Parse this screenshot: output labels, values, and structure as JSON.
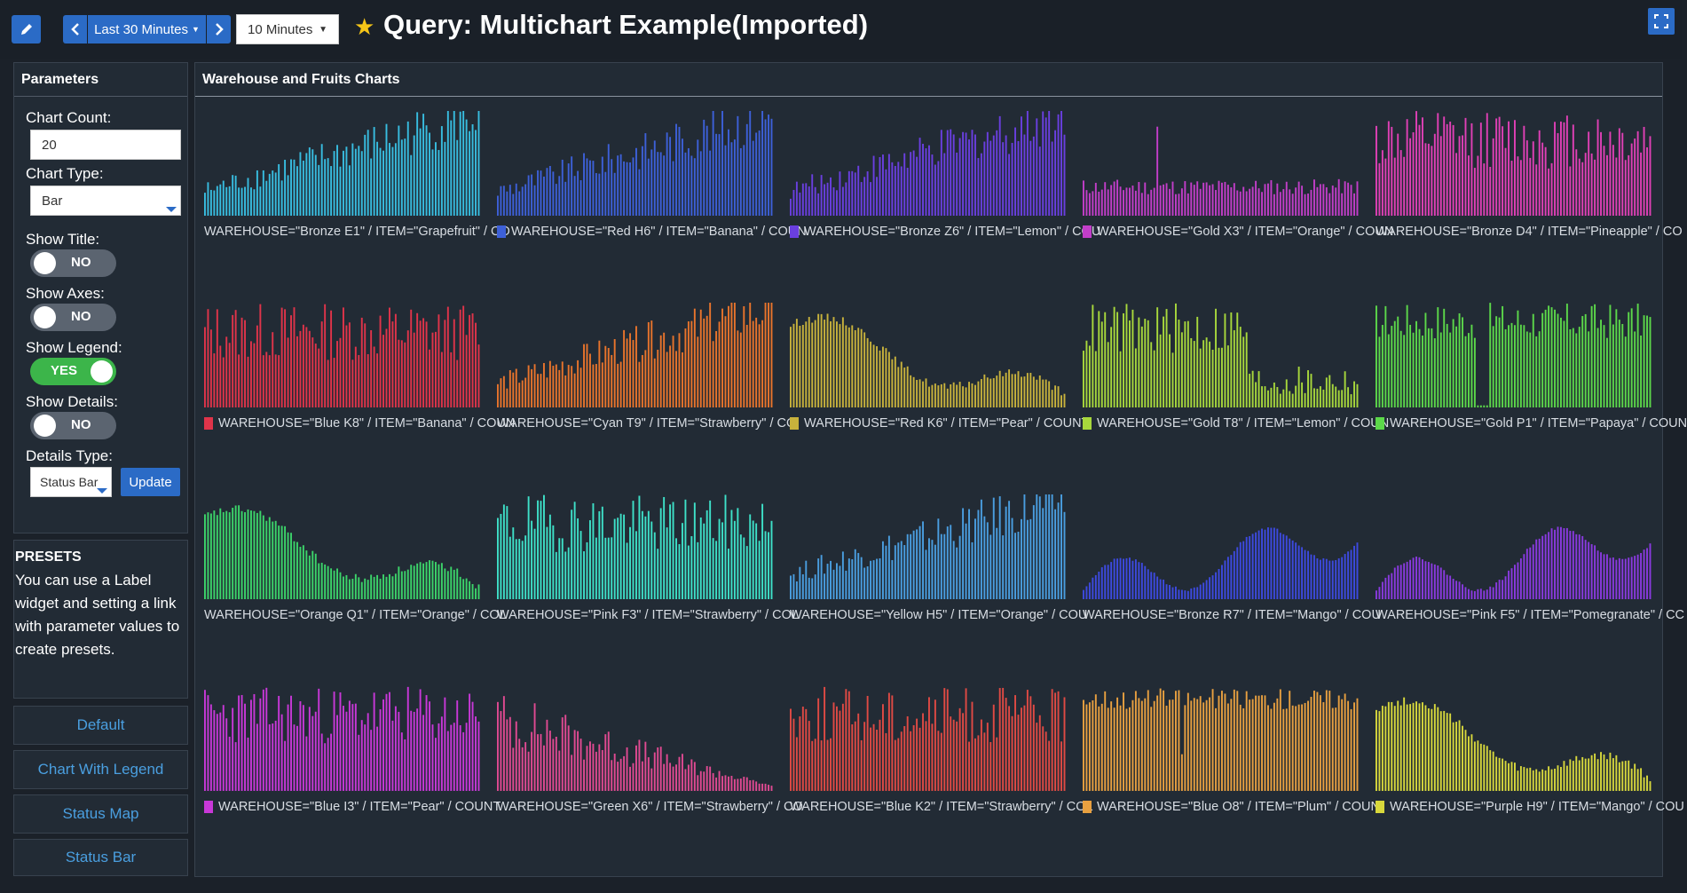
{
  "header": {
    "range_label": "Last 30 Minutes",
    "interval_label": "10 Minutes",
    "title": "Query: Multichart Example(Imported)"
  },
  "parameters": {
    "heading": "Parameters",
    "chart_count_label": "Chart Count:",
    "chart_count_value": "20",
    "chart_type_label": "Chart Type:",
    "chart_type_value": "Bar",
    "show_title_label": "Show Title:",
    "show_title_value": "NO",
    "show_axes_label": "Show Axes:",
    "show_axes_value": "NO",
    "show_legend_label": "Show Legend:",
    "show_legend_value": "YES",
    "show_details_label": "Show Details:",
    "show_details_value": "NO",
    "details_type_label": "Details Type:",
    "details_type_value": "Status Bar",
    "update_label": "Update"
  },
  "presets": {
    "heading": "PRESETS",
    "text": "You can use a Label widget and setting a link with parameter values to create presets.",
    "buttons": [
      "Default",
      "Chart With Legend",
      "Status Map",
      "Status Bar"
    ]
  },
  "charts_panel": {
    "heading": "Warehouse and Fruits Charts"
  },
  "chart_data": [
    {
      "type": "bar",
      "pattern": "rising",
      "legend": "WAREHOUSE=\"Bronze E1\" / ITEM=\"Grapefruit\" / CO",
      "color": "#38bde0",
      "swatch": false
    },
    {
      "type": "bar",
      "pattern": "rising",
      "legend": "WAREHOUSE=\"Red H6\" / ITEM=\"Banana\" / COUN",
      "color": "#3d60d8",
      "swatch": true
    },
    {
      "type": "bar",
      "pattern": "rising",
      "legend": "WAREHOUSE=\"Bronze Z6\" / ITEM=\"Lemon\" / COU",
      "color": "#6a3fe0",
      "swatch": true
    },
    {
      "type": "bar",
      "pattern": "flat-spike",
      "legend": "WAREHOUSE=\"Gold X3\" / ITEM=\"Orange\" / COUN",
      "color": "#c23ec9",
      "swatch": true
    },
    {
      "type": "bar",
      "pattern": "high-noisy",
      "legend": "WAREHOUSE=\"Bronze D4\" / ITEM=\"Pineapple\" / CO",
      "color": "#e040b6",
      "swatch": false
    },
    {
      "type": "bar",
      "pattern": "high-noisy",
      "legend": "WAREHOUSE=\"Blue K8\" / ITEM=\"Banana\" / COUN",
      "color": "#e0344a",
      "swatch": true
    },
    {
      "type": "bar",
      "pattern": "rising",
      "legend": "WAREHOUSE=\"Cyan T9\" / ITEM=\"Strawberry\" / CO",
      "color": "#e8742c",
      "swatch": false
    },
    {
      "type": "bar",
      "pattern": "decay-wave",
      "legend": "WAREHOUSE=\"Red K6\" / ITEM=\"Pear\" / COUNT",
      "color": "#c8b23c",
      "swatch": true
    },
    {
      "type": "bar",
      "pattern": "step-down",
      "legend": "WAREHOUSE=\"Gold T8\" / ITEM=\"Lemon\" / COUN",
      "color": "#a8d83c",
      "swatch": true
    },
    {
      "type": "bar",
      "pattern": "gap-high",
      "legend": "WAREHOUSE=\"Gold P1\" / ITEM=\"Papaya\" / COUN",
      "color": "#5cd84a",
      "swatch": true
    },
    {
      "type": "bar",
      "pattern": "decay-wave",
      "legend": "WAREHOUSE=\"Orange Q1\" / ITEM=\"Orange\" / COL",
      "color": "#3cd46a",
      "swatch": false
    },
    {
      "type": "bar",
      "pattern": "high-noisy",
      "legend": "WAREHOUSE=\"Pink F3\" / ITEM=\"Strawberry\" / COL",
      "color": "#3ee0c8",
      "swatch": false
    },
    {
      "type": "bar",
      "pattern": "rising",
      "legend": "WAREHOUSE=\"Yellow H5\" / ITEM=\"Orange\" / COU",
      "color": "#4a9ee0",
      "swatch": false
    },
    {
      "type": "bar",
      "pattern": "smooth-rise",
      "legend": "WAREHOUSE=\"Bronze R7\" / ITEM=\"Mango\" / COU",
      "color": "#3d4ae0",
      "swatch": false
    },
    {
      "type": "bar",
      "pattern": "smooth-rise",
      "legend": "WAREHOUSE=\"Pink F5\" / ITEM=\"Pomegranate\" / CC",
      "color": "#8a3ae0",
      "swatch": false
    },
    {
      "type": "bar",
      "pattern": "high-noisy",
      "legend": "WAREHOUSE=\"Blue I3\" / ITEM=\"Pear\" / COUNT",
      "color": "#c838d8",
      "swatch": true
    },
    {
      "type": "bar",
      "pattern": "falling",
      "legend": "WAREHOUSE=\"Green X6\" / ITEM=\"Strawberry\" / CO",
      "color": "#e04a92",
      "swatch": false
    },
    {
      "type": "bar",
      "pattern": "high-noisy",
      "legend": "WAREHOUSE=\"Blue K2\" / ITEM=\"Strawberry\" / COL",
      "color": "#e04a44",
      "swatch": false
    },
    {
      "type": "bar",
      "pattern": "high-flat",
      "legend": "WAREHOUSE=\"Blue O8\" / ITEM=\"Plum\" / COUN",
      "color": "#e8a040",
      "swatch": true
    },
    {
      "type": "bar",
      "pattern": "decay-wave",
      "legend": "WAREHOUSE=\"Purple H9\" / ITEM=\"Mango\" / COU",
      "color": "#d8d83c",
      "swatch": true
    }
  ]
}
